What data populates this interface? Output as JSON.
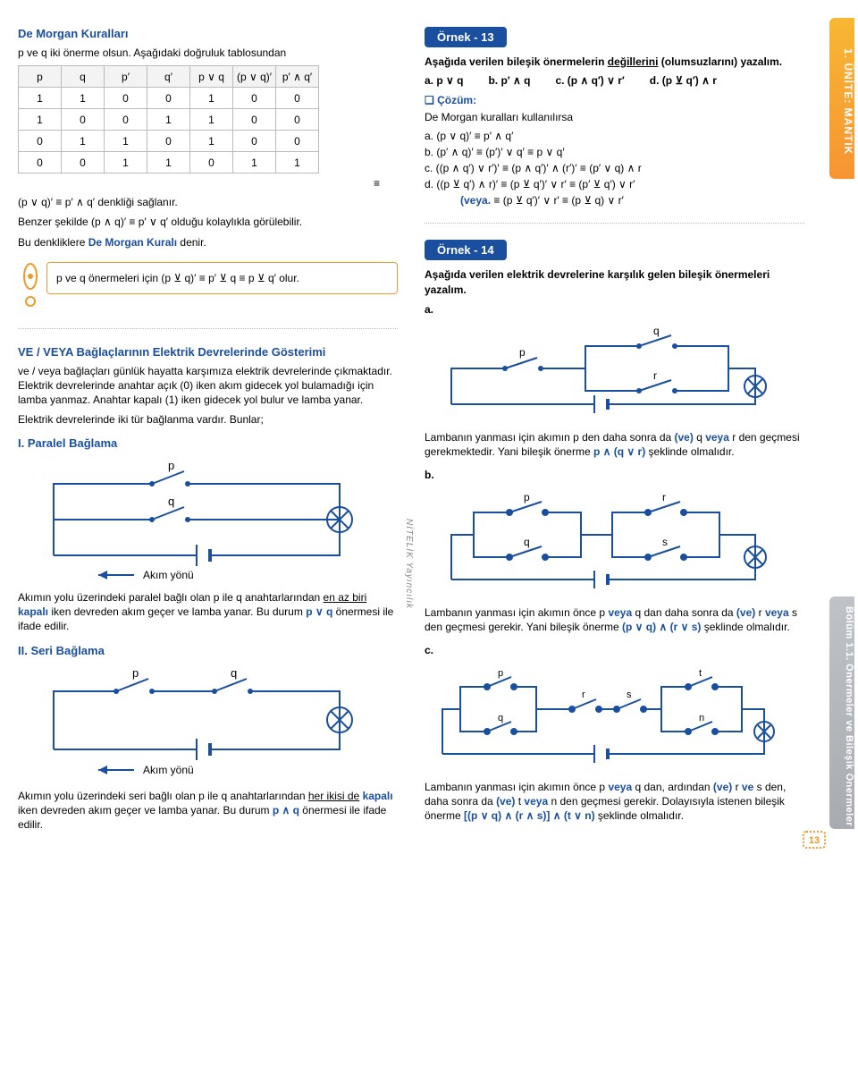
{
  "sidebar_top": "1. ÜNİTE: MANTIK",
  "sidebar_bot": "Bölüm 1.1. Önermeler ve Bileşik Önermeler",
  "brand": "NİTELİK Yayıncılık",
  "pagenum": "13",
  "left": {
    "heading": "De Morgan Kuralları",
    "intro": "p ve q iki önerme olsun. Aşağıdaki doğruluk tablosundan",
    "table": {
      "headers": [
        "p",
        "q",
        "p′",
        "q′",
        "p ∨ q",
        "(p ∨ q)′",
        "p′ ∧ q′"
      ],
      "rows": [
        [
          "1",
          "1",
          "0",
          "0",
          "1",
          "0",
          "0"
        ],
        [
          "1",
          "0",
          "0",
          "1",
          "1",
          "0",
          "0"
        ],
        [
          "0",
          "1",
          "1",
          "0",
          "1",
          "0",
          "0"
        ],
        [
          "0",
          "0",
          "1",
          "1",
          "0",
          "1",
          "1"
        ]
      ]
    },
    "eq_mark": "≡",
    "line1_a": "(p ∨ q)′ ≡ p′ ∧ q′ denkliği sağlanır.",
    "line2_a": "Benzer şekilde (p ∧ q)′ ≡ p′ ∨ q′ olduğu kolaylıkla görülebilir.",
    "line3_a": "Bu denkliklere ",
    "line3_b": "De Morgan Kuralı",
    "line3_c": " denir.",
    "excl": "p ve q önermeleri için  (p ⊻ q)′ ≡ p′ ⊻ q ≡ p ⊻ q′ olur.",
    "sec2_title": "VE / VEYA Bağlaçlarının Elektrik Devrelerinde Gösterimi",
    "sec2_p1": "ve / veya bağlaçları günlük hayatta karşımıza elektrik devrelerinde çıkmaktadır. Elektrik devrelerinde anahtar açık (0) iken akım gidecek yol bulamadığı için lamba yanmaz. Anahtar kapalı (1) iken gidecek yol bulur ve lamba yanar.",
    "sec2_p2": "Elektrik devrelerinde iki tür bağlanma vardır. Bunlar;",
    "par_title": "I. Paralel Bağlama",
    "akim": "Akım yönü",
    "par_desc_a": "Akımın yolu üzerindeki paralel bağlı olan p ile q anahtarlarından ",
    "par_desc_b": "en az biri",
    "par_desc_c": " ",
    "par_desc_d": "kapalı",
    "par_desc_e": " iken devreden akım geçer ve lamba yanar. Bu durum ",
    "par_desc_f": "p ∨ q",
    "par_desc_g": " önermesi ile ifade edilir.",
    "seri_title": "II. Seri Bağlama",
    "seri_desc_a": "Akımın yolu üzerindeki seri bağlı olan p ile q anahtarlarından ",
    "seri_desc_b": "her ikisi de",
    "seri_desc_c": " ",
    "seri_desc_d": "kapalı",
    "seri_desc_e": " iken devreden akım geçer ve lamba yanar. Bu durum ",
    "seri_desc_f": "p ∧ q",
    "seri_desc_g": " önermesi ile ifade edilir."
  },
  "right": {
    "ex13_badge": "Örnek - 13",
    "ex13_intro_a": "Aşağıda verilen bileşik önermelerin ",
    "ex13_intro_b": "değillerini",
    "ex13_intro_c": " (olumsuzlarını) yazalım.",
    "ex13_items": {
      "a": "a. p ∨ q",
      "b": "b. p′ ∧ q",
      "c": "c. (p ∧ q′) ∨ r′",
      "d": "d. (p ⊻ q′) ∧ r"
    },
    "cozum": "❏ Çözüm:",
    "ex13_sol_head": "De Morgan kuralları kullanılırsa",
    "ex13_sol": {
      "a": "a.  (p ∨ q)′ ≡ p′ ∧ q′",
      "b": "b.  (p′ ∧ q)′ ≡ (p′)′ ∨ q′ ≡ p ∨ q′",
      "c": "c.  ((p ∧ q′) ∨ r′)′ ≡ (p ∧ q′)′ ∧ (r′)′ ≡ (p′ ∨ q) ∧ r",
      "d": "d.  ((p ⊻ q′) ∧ r)′ ≡ (p ⊻ q′)′ ∨ r′ ≡ (p′ ⊻ q′) ∨ r′"
    },
    "ex13_veya_label": "(veya. ",
    "ex13_veya_body": "≡ (p ⊻ q′)′ ∨ r′ ≡ (p ⊻ q) ∨ r′",
    "ex14_badge": "Örnek - 14",
    "ex14_intro": "Aşağıda verilen elektrik devrelerine karşılık gelen bileşik önermeleri yazalım.",
    "ex14_a_label": "a.",
    "ex14_a_desc_a": "Lambanın yanması için akımın p den daha sonra da ",
    "ex14_a_desc_ve": "(ve)",
    "ex14_a_desc_b": " q ",
    "ex14_a_desc_veya": "veya",
    "ex14_a_desc_c": " r den geçmesi gerekmektedir. Yani bileşik önerme ",
    "ex14_a_desc_d": "p ∧ (q ∨ r)",
    "ex14_a_desc_e": " şeklinde olmalıdır.",
    "ex14_b_label": "b.",
    "ex14_b_desc_a": "Lambanın yanması için akımın önce p ",
    "ex14_b_desc_veya": "veya",
    "ex14_b_desc_b": " q dan daha sonra da ",
    "ex14_b_desc_ve": "(ve)",
    "ex14_b_desc_c": " r ",
    "ex14_b_desc_veya2": "veya",
    "ex14_b_desc_d": " s den geçmesi gerekir. Yani bileşik önerme ",
    "ex14_b_desc_e": "(p ∨ q) ∧ (r ∨ s)",
    "ex14_b_desc_f": " şeklinde olmalıdır.",
    "ex14_c_label": "c.",
    "ex14_c_desc_a": "Lambanın yanması için akımın önce p ",
    "ex14_c_desc_veya": "veya",
    "ex14_c_desc_b": " q dan, ardından ",
    "ex14_c_desc_ve": "(ve)",
    "ex14_c_desc_c": " r ",
    "ex14_c_desc_ve2": "ve",
    "ex14_c_desc_d": " s den, daha sonra da ",
    "ex14_c_desc_ve3": "(ve)",
    "ex14_c_desc_e": " t ",
    "ex14_c_desc_veya2": "veya",
    "ex14_c_desc_f": " n den geçmesi gerekir. Dolayısıyla istenen bileşik önerme ",
    "ex14_c_desc_g": "[(p ∨ q) ∧ (r ∧ s)] ∧ (t ∨ n)",
    "ex14_c_desc_h": " şeklinde olmalıdır."
  },
  "colors": {
    "blue": "#1a4fa0",
    "orange": "#f19a2a",
    "grad1": "#f7b733",
    "grad2": "#f79433",
    "gray1": "#bfc3c8",
    "gray2": "#a8acb1"
  }
}
